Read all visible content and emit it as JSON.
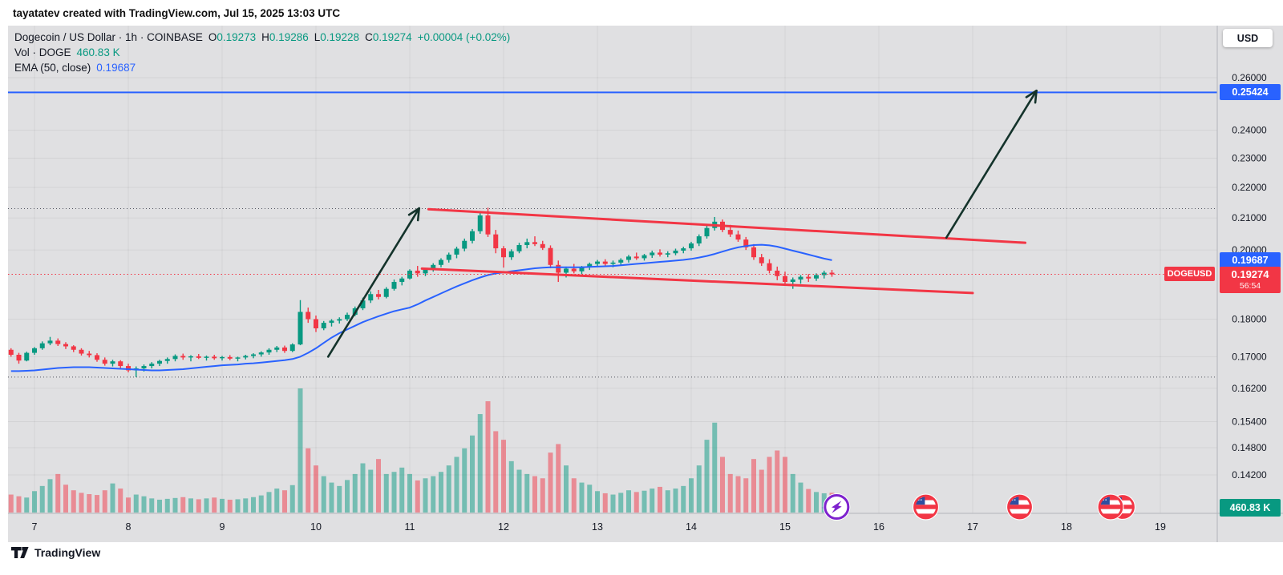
{
  "attribution": {
    "text": "tayatatev created with TradingView.com, Jul 15, 2025 13:03 UTC"
  },
  "legend": {
    "title": "Dogecoin / US Dollar · 1h · COINBASE",
    "ohlc": [
      {
        "label": "O",
        "value": "0.19273"
      },
      {
        "label": "H",
        "value": "0.19286"
      },
      {
        "label": "L",
        "value": "0.19228"
      },
      {
        "label": "C",
        "value": "0.19274"
      }
    ],
    "change": "+0.00004 (+0.02%)",
    "volume_label": "Vol · DOGE",
    "volume_value": "460.83 K",
    "ema_label": "EMA (50, close)",
    "ema_value": "0.19687"
  },
  "price_axis": {
    "currency_button": "USD",
    "line_badge": "0.25424",
    "ema_badge": "0.19687",
    "symbol_badge": "DOGEUSD",
    "price_badge": {
      "value": "0.19274",
      "countdown": "56:54"
    },
    "volume_badge": "460.83 K"
  },
  "time_axis": {
    "labels": [
      "7",
      "8",
      "9",
      "10",
      "11",
      "12",
      "13",
      "14",
      "15",
      "16",
      "17",
      "18",
      "19"
    ]
  },
  "logo": {
    "text": "TradingView"
  },
  "colors": {
    "up": "#089981",
    "down": "#F23645",
    "blue": "#2962FF",
    "red": "#F23645",
    "arrow": "#14332B",
    "bg": "#E0E0E2",
    "grid": "rgba(0,0,0,0.055)",
    "separator": "#B2B4BA",
    "dotted": "#50535E",
    "purple": "#7E22CE",
    "flag_blue": "#2F4DA0",
    "text": "#131722"
  },
  "chart_data": {
    "type": "candlestick",
    "symbol": "DOGEUSD",
    "exchange": "COINBASE",
    "interval": "1h",
    "note": "hourly chart approximated with 2-hour candles, Jul 6 18:00 - Jul 15 13:00 UTC",
    "scale": "log",
    "price_ticks": [
      0.26,
      0.24,
      0.23,
      0.22,
      0.21,
      0.2,
      0.18,
      0.17,
      0.162,
      0.154,
      0.148,
      0.142
    ],
    "x_day_labels": [
      7,
      8,
      9,
      10,
      11,
      12,
      13,
      14,
      15,
      16,
      17,
      18,
      19
    ],
    "start_day": 6.75,
    "candle_interval_days": 0.0833333,
    "ohlc_current": {
      "o": 0.19273,
      "h": 0.19286,
      "l": 0.19228,
      "c": 0.19274,
      "change": 4e-05,
      "change_pct": 0.02
    },
    "current_volume_k": 460.83,
    "ema_current": 0.19687,
    "candles": [
      [
        0.1718,
        0.1722,
        0.17,
        0.1705
      ],
      [
        0.1705,
        0.171,
        0.1682,
        0.169
      ],
      [
        0.169,
        0.1713,
        0.1688,
        0.171
      ],
      [
        0.171,
        0.1725,
        0.1705,
        0.1722
      ],
      [
        0.1722,
        0.174,
        0.1718,
        0.1735
      ],
      [
        0.1735,
        0.1752,
        0.173,
        0.1742
      ],
      [
        0.1742,
        0.1748,
        0.1728,
        0.1733
      ],
      [
        0.1733,
        0.1738,
        0.172,
        0.1727
      ],
      [
        0.1727,
        0.173,
        0.1712,
        0.1718
      ],
      [
        0.1718,
        0.1722,
        0.1703,
        0.1708
      ],
      [
        0.1708,
        0.1715,
        0.1698,
        0.1704
      ],
      [
        0.1704,
        0.1709,
        0.1687,
        0.1692
      ],
      [
        0.1692,
        0.1698,
        0.1677,
        0.1682
      ],
      [
        0.1682,
        0.1692,
        0.1675,
        0.1688
      ],
      [
        0.1688,
        0.1691,
        0.167,
        0.1676
      ],
      [
        0.1676,
        0.1682,
        0.166,
        0.1665
      ],
      [
        0.1665,
        0.1675,
        0.1648,
        0.167
      ],
      [
        0.167,
        0.168,
        0.1662,
        0.1676
      ],
      [
        0.1676,
        0.1686,
        0.167,
        0.1682
      ],
      [
        0.1682,
        0.1692,
        0.1676,
        0.1689
      ],
      [
        0.1689,
        0.1698,
        0.1682,
        0.1694
      ],
      [
        0.1694,
        0.1706,
        0.1688,
        0.1702
      ],
      [
        0.1702,
        0.1708,
        0.1692,
        0.1698
      ],
      [
        0.1698,
        0.1704,
        0.1688,
        0.1701
      ],
      [
        0.1701,
        0.1707,
        0.1694,
        0.1697
      ],
      [
        0.1697,
        0.1703,
        0.169,
        0.17
      ],
      [
        0.17,
        0.1705,
        0.1692,
        0.1696
      ],
      [
        0.1696,
        0.1702,
        0.169,
        0.1699
      ],
      [
        0.1699,
        0.1704,
        0.1691,
        0.1695
      ],
      [
        0.1695,
        0.17,
        0.1688,
        0.1698
      ],
      [
        0.1698,
        0.1705,
        0.1693,
        0.1702
      ],
      [
        0.1702,
        0.1709,
        0.1696,
        0.1706
      ],
      [
        0.1706,
        0.1714,
        0.17,
        0.1711
      ],
      [
        0.1711,
        0.1722,
        0.1705,
        0.1718
      ],
      [
        0.1718,
        0.1728,
        0.1712,
        0.1724
      ],
      [
        0.1724,
        0.1729,
        0.171,
        0.1715
      ],
      [
        0.1715,
        0.1735,
        0.1712,
        0.1732
      ],
      [
        0.1732,
        0.1853,
        0.173,
        0.182
      ],
      [
        0.182,
        0.1832,
        0.179,
        0.18
      ],
      [
        0.18,
        0.181,
        0.1765,
        0.1775
      ],
      [
        0.1775,
        0.1795,
        0.177,
        0.179
      ],
      [
        0.179,
        0.18,
        0.178,
        0.1796
      ],
      [
        0.1796,
        0.1805,
        0.1788,
        0.18
      ],
      [
        0.18,
        0.1818,
        0.1795,
        0.1812
      ],
      [
        0.1812,
        0.1835,
        0.1808,
        0.183
      ],
      [
        0.183,
        0.186,
        0.1825,
        0.1852
      ],
      [
        0.1852,
        0.1878,
        0.1845,
        0.187
      ],
      [
        0.187,
        0.1882,
        0.1855,
        0.1862
      ],
      [
        0.1862,
        0.189,
        0.1858,
        0.1885
      ],
      [
        0.1885,
        0.1912,
        0.188,
        0.1905
      ],
      [
        0.1905,
        0.192,
        0.1895,
        0.1915
      ],
      [
        0.1915,
        0.1942,
        0.1912,
        0.1938
      ],
      [
        0.1938,
        0.1952,
        0.192,
        0.193
      ],
      [
        0.193,
        0.1945,
        0.1922,
        0.1942
      ],
      [
        0.1942,
        0.196,
        0.1935,
        0.1955
      ],
      [
        0.1955,
        0.1975,
        0.1948,
        0.197
      ],
      [
        0.197,
        0.1992,
        0.1962,
        0.1986
      ],
      [
        0.1986,
        0.201,
        0.1975,
        0.2004
      ],
      [
        0.2004,
        0.2035,
        0.1996,
        0.2028
      ],
      [
        0.2028,
        0.2065,
        0.202,
        0.2058
      ],
      [
        0.2058,
        0.212,
        0.205,
        0.2108
      ],
      [
        0.2108,
        0.2133,
        0.204,
        0.2048
      ],
      [
        0.2048,
        0.2062,
        0.199,
        0.2005
      ],
      [
        0.2005,
        0.2012,
        0.1947,
        0.1978
      ],
      [
        0.1978,
        0.2002,
        0.197,
        0.1996
      ],
      [
        0.1996,
        0.2022,
        0.199,
        0.2015
      ],
      [
        0.2015,
        0.2035,
        0.2005,
        0.2024
      ],
      [
        0.2024,
        0.2042,
        0.2012,
        0.2018
      ],
      [
        0.2018,
        0.2028,
        0.2,
        0.2006
      ],
      [
        0.2006,
        0.2014,
        0.1945,
        0.1955
      ],
      [
        0.1955,
        0.1968,
        0.1905,
        0.1932
      ],
      [
        0.1932,
        0.195,
        0.1918,
        0.1944
      ],
      [
        0.1944,
        0.1958,
        0.193,
        0.1936
      ],
      [
        0.1936,
        0.1952,
        0.1928,
        0.1948
      ],
      [
        0.1948,
        0.1962,
        0.194,
        0.1958
      ],
      [
        0.1958,
        0.197,
        0.195,
        0.1965
      ],
      [
        0.1965,
        0.1972,
        0.1952,
        0.1958
      ],
      [
        0.1958,
        0.1968,
        0.1948,
        0.1962
      ],
      [
        0.1962,
        0.1975,
        0.1955,
        0.197
      ],
      [
        0.197,
        0.1985,
        0.1962,
        0.198
      ],
      [
        0.198,
        0.1992,
        0.197,
        0.1975
      ],
      [
        0.1975,
        0.1988,
        0.1968,
        0.1984
      ],
      [
        0.1984,
        0.1998,
        0.1976,
        0.1992
      ],
      [
        0.1992,
        0.2002,
        0.198,
        0.1986
      ],
      [
        0.1986,
        0.1996,
        0.1978,
        0.199
      ],
      [
        0.199,
        0.2004,
        0.1984,
        0.1998
      ],
      [
        0.1998,
        0.201,
        0.199,
        0.2005
      ],
      [
        0.2005,
        0.2025,
        0.1998,
        0.202
      ],
      [
        0.202,
        0.2048,
        0.2012,
        0.2042
      ],
      [
        0.2042,
        0.2075,
        0.2035,
        0.2068
      ],
      [
        0.2068,
        0.2103,
        0.206,
        0.2088
      ],
      [
        0.2088,
        0.2095,
        0.2055,
        0.2062
      ],
      [
        0.2062,
        0.2078,
        0.204,
        0.2048
      ],
      [
        0.2048,
        0.206,
        0.2025,
        0.2032
      ],
      [
        0.2032,
        0.204,
        0.2,
        0.2008
      ],
      [
        0.2008,
        0.2018,
        0.197,
        0.1978
      ],
      [
        0.1978,
        0.1988,
        0.1952,
        0.196
      ],
      [
        0.196,
        0.1972,
        0.193,
        0.1938
      ],
      [
        0.1938,
        0.195,
        0.191,
        0.1922
      ],
      [
        0.1922,
        0.1935,
        0.1895,
        0.1905
      ],
      [
        0.1905,
        0.1918,
        0.1885,
        0.1912
      ],
      [
        0.1912,
        0.1925,
        0.19,
        0.192
      ],
      [
        0.192,
        0.1928,
        0.1905,
        0.1915
      ],
      [
        0.1915,
        0.193,
        0.1908,
        0.1925
      ],
      [
        0.1925,
        0.1938,
        0.1915,
        0.1932
      ],
      [
        0.1932,
        0.194,
        0.192,
        0.1927
      ]
    ],
    "volumes_k": [
      420,
      380,
      350,
      500,
      620,
      780,
      900,
      650,
      520,
      460,
      430,
      410,
      520,
      680,
      560,
      350,
      420,
      380,
      330,
      300,
      320,
      340,
      360,
      330,
      310,
      330,
      350,
      320,
      300,
      310,
      330,
      360,
      400,
      480,
      560,
      520,
      640,
      2900,
      1500,
      1100,
      850,
      700,
      620,
      760,
      900,
      1150,
      1000,
      1250,
      900,
      950,
      1050,
      900,
      750,
      800,
      850,
      950,
      1100,
      1300,
      1500,
      1800,
      2300,
      2600,
      1900,
      1700,
      1200,
      1000,
      900,
      850,
      800,
      1400,
      1600,
      1100,
      800,
      700,
      650,
      500,
      450,
      420,
      460,
      520,
      480,
      510,
      560,
      600,
      520,
      560,
      620,
      800,
      1100,
      1700,
      2100,
      1300,
      900,
      850,
      800,
      1250,
      1000,
      1300,
      1450,
      1300,
      900,
      700,
      550,
      480,
      450,
      461
    ],
    "ema50": [
      0.1663,
      0.1663,
      0.1664,
      0.1665,
      0.1667,
      0.1669,
      0.1671,
      0.1672,
      0.1673,
      0.1673,
      0.1673,
      0.1672,
      0.1671,
      0.167,
      0.1669,
      0.1668,
      0.1667,
      0.1666,
      0.1665,
      0.1665,
      0.1666,
      0.1667,
      0.1668,
      0.167,
      0.1672,
      0.1674,
      0.1676,
      0.1678,
      0.1679,
      0.168,
      0.1682,
      0.1683,
      0.1685,
      0.1687,
      0.1689,
      0.1691,
      0.1694,
      0.17,
      0.171,
      0.1722,
      0.1736,
      0.175,
      0.1762,
      0.1772,
      0.1782,
      0.1792,
      0.18,
      0.1808,
      0.1815,
      0.1822,
      0.1827,
      0.1832,
      0.1841,
      0.1852,
      0.1862,
      0.1872,
      0.1882,
      0.1892,
      0.1901,
      0.191,
      0.1918,
      0.1925,
      0.193,
      0.1933,
      0.1936,
      0.1939,
      0.1942,
      0.1945,
      0.1947,
      0.1948,
      0.1948,
      0.1948,
      0.1948,
      0.1948,
      0.1949,
      0.195,
      0.1951,
      0.1952,
      0.1954,
      0.1956,
      0.1958,
      0.196,
      0.1962,
      0.1964,
      0.1966,
      0.1968,
      0.197,
      0.1973,
      0.1977,
      0.1982,
      0.1988,
      0.1995,
      0.2002,
      0.2008,
      0.2012,
      0.2015,
      0.2016,
      0.2014,
      0.201,
      0.2004,
      0.1998,
      0.1992,
      0.1986,
      0.198,
      0.1974,
      0.1969
    ],
    "overlays": {
      "horizontal_ray": {
        "price": 0.25424,
        "color": "#2962FF"
      },
      "last_price_line": {
        "price": 0.19274,
        "style": "dotted",
        "color": "#F23645"
      },
      "range_high_line": {
        "price": 0.213,
        "style": "dotted"
      },
      "range_low_line": {
        "price": 0.1648,
        "style": "dotted"
      },
      "trendlines": [
        {
          "from": {
            "day": 11.2,
            "price": 0.2128
          },
          "to": {
            "day": 17.56,
            "price": 0.2022
          },
          "color": "#F23645"
        },
        {
          "from": {
            "day": 11.13,
            "price": 0.1944
          },
          "to": {
            "day": 17.0,
            "price": 0.1873
          },
          "color": "#F23645"
        }
      ],
      "arrows": [
        {
          "from": {
            "day": 10.13,
            "price": 0.17
          },
          "to": {
            "day": 11.1,
            "price": 0.2131
          }
        },
        {
          "from": {
            "day": 16.72,
            "price": 0.2038
          },
          "to": {
            "day": 17.68,
            "price": 0.2549
          }
        }
      ]
    },
    "event_markers": {
      "lightning": {
        "day": 15.55
      },
      "us_flags": [
        {
          "day": 16.5,
          "double": false
        },
        {
          "day": 17.5,
          "double": false
        },
        {
          "day": 18.47,
          "double": true
        }
      ]
    }
  }
}
